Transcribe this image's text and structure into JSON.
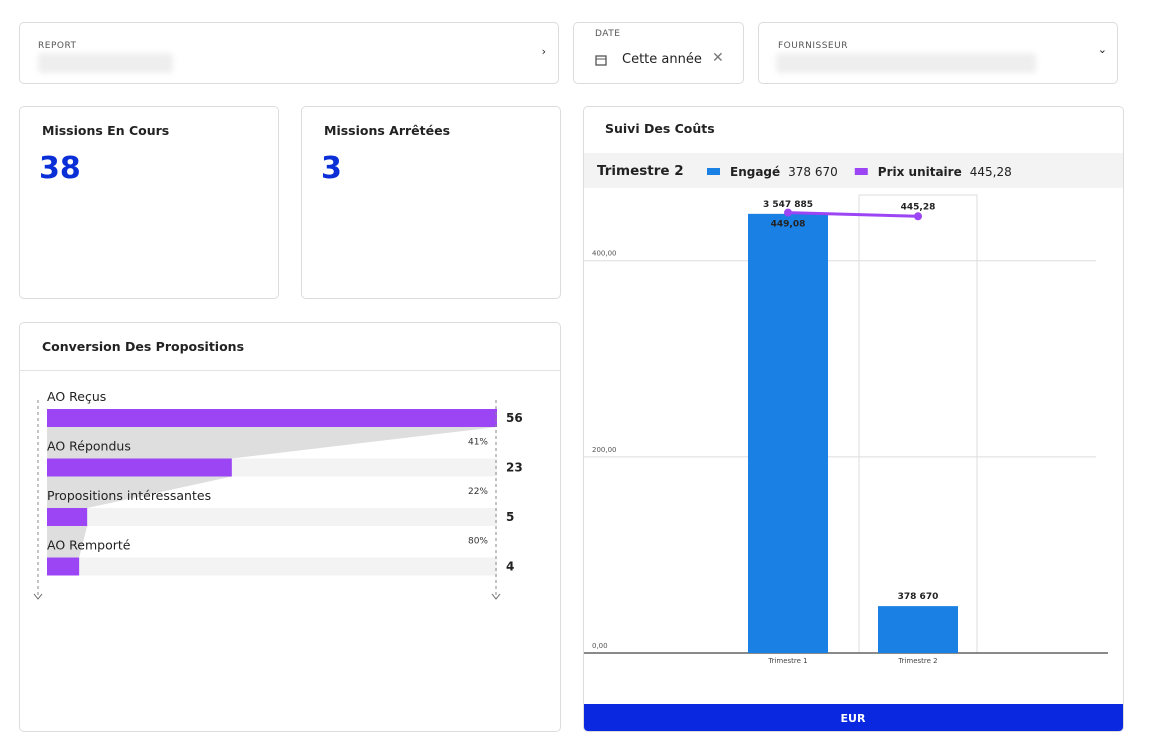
{
  "filters": {
    "report_label": "REPORT",
    "date_label": "DATE",
    "date_value": "Cette année",
    "supplier_label": "FOURNISSEUR"
  },
  "kpis": [
    {
      "title": "Missions En Cours",
      "value": "38"
    },
    {
      "title": "Missions Arrêtées",
      "value": "3"
    }
  ],
  "funnel": {
    "title": "Conversion Des Propositions",
    "stages": [
      {
        "label": "AO Reçus",
        "value": 56,
        "rate": null
      },
      {
        "label": "AO Répondus",
        "value": 23,
        "rate": "41%"
      },
      {
        "label": "Propositions intéressantes",
        "value": 5,
        "rate": "22%"
      },
      {
        "label": "AO Remporté",
        "value": 4,
        "rate": "80%"
      }
    ]
  },
  "chart_data": {
    "type": "bar",
    "title": "Suivi Des Coûts",
    "categories": [
      "Trimestre 1",
      "Trimestre 2"
    ],
    "series": [
      {
        "name": "Engagé",
        "type": "bar",
        "axis": "y2",
        "color": "#1a80e3",
        "values": [
          3547885,
          378670
        ],
        "value_labels": [
          "3 547 885",
          "378 670"
        ]
      },
      {
        "name": "Prix unitaire",
        "type": "line",
        "color": "#9b45f5",
        "values": [
          449.08,
          445.28
        ],
        "value_labels": [
          "449,08",
          "445,28"
        ]
      }
    ],
    "ylim": [
      0,
      467
    ],
    "yticks": [
      {
        "value": 0,
        "label": "0,00"
      },
      {
        "value": 200,
        "label": "200,00"
      },
      {
        "value": 400,
        "label": "400,00"
      }
    ],
    "y2lim": [
      0,
      3700000
    ],
    "grid": true,
    "unit": "EUR"
  }
}
